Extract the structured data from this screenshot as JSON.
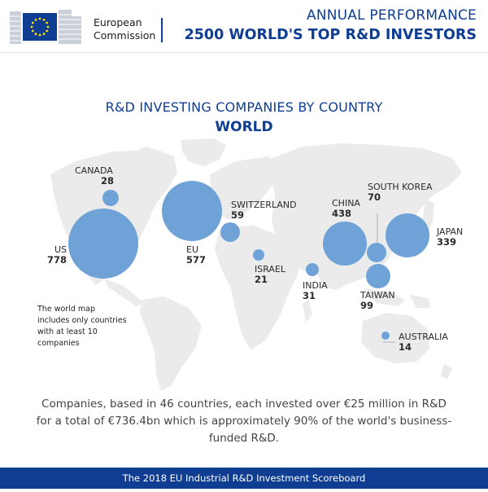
{
  "header": {
    "org_line1": "European",
    "org_line2": "Commission",
    "title_line1": "ANNUAL PERFORMANCE",
    "title_line2": "2500 WORLD'S TOP R&D INVESTORS"
  },
  "main": {
    "title": "R&D INVESTING COMPANIES BY COUNTRY",
    "subtitle": "WORLD",
    "note": "The world map includes only countries with at least 10 companies"
  },
  "countries": [
    {
      "name": "CANADA",
      "value": "28"
    },
    {
      "name": "US",
      "value": "778"
    },
    {
      "name": "EU",
      "value": "577"
    },
    {
      "name": "SWITZERLAND",
      "value": "59"
    },
    {
      "name": "ISRAEL",
      "value": "21"
    },
    {
      "name": "INDIA",
      "value": "31"
    },
    {
      "name": "CHINA",
      "value": "438"
    },
    {
      "name": "SOUTH KOREA",
      "value": "70"
    },
    {
      "name": "JAPAN",
      "value": "339"
    },
    {
      "name": "TAIWAN",
      "value": "99"
    },
    {
      "name": "AUSTRALIA",
      "value": "14"
    }
  ],
  "footer": {
    "summary": "Companies, based in 46 countries, each invested over €25 million in R&D for a total of €736.4bn which is approximately 90% of the world's business-funded R&D.",
    "banner": "The 2018 EU Industrial R&D Investment Scoreboard"
  },
  "colors": {
    "brand_blue": "#0e3d91",
    "bubble": "#6fa3d8",
    "map_gray": "#ebebeb"
  }
}
